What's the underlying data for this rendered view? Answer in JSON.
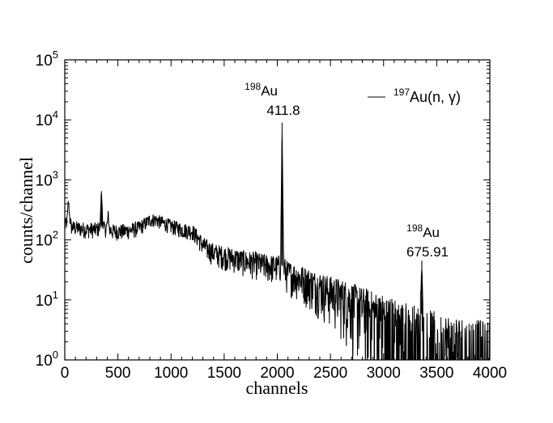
{
  "chart_data": {
    "type": "line",
    "title": "",
    "xlabel": "channels",
    "ylabel": "counts/channel",
    "xlim": [
      0,
      4000
    ],
    "ylim": [
      1,
      100000
    ],
    "yscale": "log",
    "grid": false,
    "legend_position": "top-right",
    "x_ticks": [
      "0",
      "500",
      "1000",
      "1500",
      "2000",
      "2500",
      "3000",
      "3500",
      "4000"
    ],
    "y_ticks": [
      {
        "base": "10",
        "exp": "0"
      },
      {
        "base": "10",
        "exp": "1"
      },
      {
        "base": "10",
        "exp": "2"
      },
      {
        "base": "10",
        "exp": "3"
      },
      {
        "base": "10",
        "exp": "4"
      },
      {
        "base": "10",
        "exp": "5"
      }
    ],
    "series": [
      {
        "legend_sup": "197",
        "legend_main": "Au(n, γ)",
        "color": "#000000",
        "x": [
          0,
          20,
          35,
          45,
          60,
          100,
          150,
          200,
          250,
          300,
          330,
          345,
          360,
          380,
          400,
          410,
          420,
          450,
          500,
          550,
          600,
          650,
          700,
          750,
          800,
          850,
          900,
          950,
          1000,
          1050,
          1100,
          1150,
          1200,
          1250,
          1300,
          1350,
          1400,
          1450,
          1500,
          1550,
          1600,
          1650,
          1700,
          1750,
          1800,
          1850,
          1900,
          1950,
          2000,
          2030,
          2045,
          2060,
          2080,
          2100,
          2150,
          2200,
          2250,
          2300,
          2350,
          2400,
          2450,
          2500,
          2550,
          2600,
          2650,
          2700,
          2750,
          2800,
          2850,
          2900,
          2950,
          3000,
          3050,
          3100,
          3150,
          3200,
          3250,
          3300,
          3340,
          3360,
          3375,
          3390,
          3420,
          3450,
          3500,
          3550,
          3600,
          3650,
          3700,
          3750,
          3800,
          3850,
          3900,
          3950,
          4000
        ],
        "y": [
          170,
          200,
          450,
          260,
          165,
          160,
          155,
          150,
          150,
          150,
          160,
          650,
          170,
          150,
          180,
          270,
          150,
          140,
          140,
          140,
          145,
          150,
          160,
          185,
          215,
          220,
          200,
          185,
          170,
          160,
          150,
          145,
          140,
          110,
          82,
          70,
          62,
          58,
          55,
          52,
          50,
          47,
          45,
          43,
          42,
          40,
          38,
          37,
          36,
          38,
          9000,
          36,
          30,
          28,
          26,
          24,
          22,
          20,
          18,
          17,
          15,
          14,
          13,
          12,
          11,
          10,
          9,
          8,
          7.5,
          6.5,
          6,
          5.5,
          5,
          4.5,
          4,
          3.8,
          3.5,
          3.2,
          3.0,
          45,
          3.0,
          2.8,
          2.6,
          2.4,
          2.2,
          2.0,
          1.9,
          1.8,
          1.7,
          1.6,
          1.5,
          1.5,
          1.4,
          1.3,
          1.3
        ]
      }
    ],
    "annotations": [
      {
        "sup": "198",
        "main": "Au",
        "value": "411.8",
        "x": 2040,
        "y": 9000
      },
      {
        "sup": "198",
        "main": "Au",
        "value": "675.91",
        "x": 3350,
        "y": 45
      }
    ]
  }
}
